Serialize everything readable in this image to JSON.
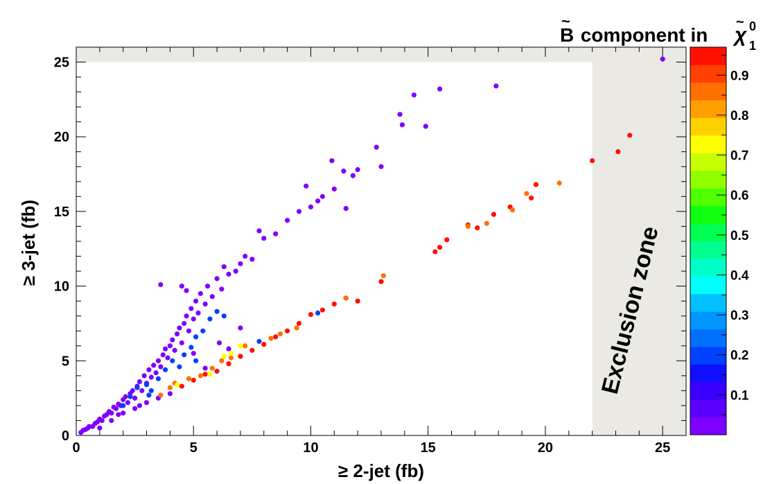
{
  "chart_data": {
    "type": "scatter",
    "xlabel": "≥ 2-jet (fb)",
    "ylabel": "≥ 3-jet (fb)",
    "xlim": [
      0,
      26
    ],
    "ylim": [
      0,
      26
    ],
    "x_ticks": [
      "0",
      "5",
      "10",
      "15",
      "20",
      "25"
    ],
    "y_ticks": [
      "0",
      "5",
      "10",
      "15",
      "20",
      "25"
    ],
    "colorbar": {
      "title_main": "B",
      "title_mid": " component in ",
      "title_chi": "χ",
      "title_sup": "0",
      "title_sub": "1",
      "range": [
        0,
        0.97
      ],
      "ticks": [
        "0.1",
        "0.2",
        "0.3",
        "0.4",
        "0.5",
        "0.6",
        "0.7",
        "0.8",
        "0.9"
      ],
      "palette": [
        "#7f00ff",
        "#5c00ff",
        "#3a00ff",
        "#1010ff",
        "#0040ff",
        "#0070ff",
        "#0095ff",
        "#00c0ff",
        "#00ffff",
        "#00ffc8",
        "#00ff90",
        "#00ff50",
        "#10ff10",
        "#50ff00",
        "#90ff00",
        "#c8ff00",
        "#ffff00",
        "#ffd000",
        "#ffa000",
        "#ff7000",
        "#ff4000",
        "#ff1000"
      ]
    },
    "annotation": "Exclusion zone",
    "exclusion_zone": {
      "x_from": 22,
      "y_from": 25
    },
    "series": [
      {
        "points": [
          [
            0.2,
            0.2
          ],
          [
            0.3,
            0.35
          ],
          [
            0.4,
            0.4
          ],
          [
            0.5,
            0.5
          ],
          [
            0.55,
            0.6
          ],
          [
            0.7,
            0.6
          ],
          [
            0.8,
            0.8
          ],
          [
            0.9,
            0.9
          ],
          [
            1.0,
            1.1
          ],
          [
            1.1,
            1.0
          ],
          [
            1.2,
            1.3
          ],
          [
            1.3,
            1.4
          ],
          [
            1.4,
            1.6
          ],
          [
            1.5,
            1.5
          ],
          [
            1.6,
            1.9
          ],
          [
            1.7,
            1.8
          ],
          [
            1.8,
            2.1
          ],
          [
            1.9,
            2.0
          ],
          [
            2.0,
            2.4
          ],
          [
            2.1,
            2.6
          ],
          [
            2.2,
            2.2
          ],
          [
            2.3,
            2.8
          ],
          [
            2.4,
            3.0
          ],
          [
            2.5,
            2.5
          ],
          [
            2.6,
            3.3
          ],
          [
            2.7,
            3.6
          ],
          [
            2.8,
            3.0
          ],
          [
            2.9,
            4.0
          ],
          [
            3.0,
            3.5
          ],
          [
            3.1,
            4.4
          ],
          [
            3.2,
            3.9
          ],
          [
            3.3,
            4.7
          ],
          [
            3.4,
            4.2
          ],
          [
            3.5,
            5.0
          ],
          [
            3.6,
            4.6
          ],
          [
            3.7,
            5.4
          ],
          [
            3.8,
            5.8
          ],
          [
            3.9,
            5.2
          ],
          [
            4.0,
            6.0
          ],
          [
            4.1,
            6.4
          ],
          [
            4.2,
            5.7
          ],
          [
            4.3,
            6.8
          ],
          [
            4.4,
            7.2
          ],
          [
            4.5,
            6.2
          ],
          [
            4.6,
            7.5
          ],
          [
            4.7,
            8.0
          ],
          [
            4.8,
            7.0
          ],
          [
            4.9,
            8.5
          ],
          [
            5.0,
            7.8
          ],
          [
            5.1,
            9.0
          ],
          [
            5.2,
            8.2
          ],
          [
            5.3,
            9.5
          ],
          [
            5.5,
            8.8
          ],
          [
            5.6,
            10.0
          ],
          [
            5.8,
            9.3
          ],
          [
            6.0,
            10.5
          ],
          [
            6.2,
            9.8
          ],
          [
            6.3,
            11.3
          ],
          [
            6.5,
            10.8
          ],
          [
            6.8,
            11.0
          ],
          [
            7.0,
            11.5
          ],
          [
            7.2,
            12.0
          ],
          [
            7.5,
            11.8
          ],
          [
            7.8,
            13.7
          ],
          [
            8.0,
            13.2
          ],
          [
            8.5,
            13.5
          ],
          [
            9.0,
            14.4
          ],
          [
            9.5,
            15.0
          ],
          [
            9.8,
            16.7
          ],
          [
            10.0,
            15.3
          ],
          [
            10.3,
            15.7
          ],
          [
            10.5,
            16.0
          ],
          [
            10.9,
            18.4
          ],
          [
            11.0,
            16.5
          ],
          [
            11.4,
            17.7
          ],
          [
            11.5,
            15.2
          ],
          [
            11.8,
            17.4
          ],
          [
            12.0,
            17.8
          ],
          [
            12.8,
            19.3
          ],
          [
            13.0,
            18.0
          ],
          [
            13.8,
            21.5
          ],
          [
            13.9,
            20.8
          ],
          [
            14.4,
            22.8
          ],
          [
            14.9,
            20.7
          ],
          [
            15.5,
            23.2
          ],
          [
            17.9,
            23.4
          ],
          [
            25.0,
            25.2
          ],
          [
            1.5,
            1.0
          ],
          [
            2.0,
            1.5
          ],
          [
            2.5,
            1.8
          ],
          [
            3.0,
            2.2
          ],
          [
            3.5,
            2.5
          ],
          [
            3.6,
            10.1
          ],
          [
            4.5,
            10.0
          ],
          [
            4.7,
            9.7
          ],
          [
            5.5,
            4.5
          ],
          [
            5.0,
            5.5
          ],
          [
            6.1,
            6.2
          ],
          [
            6.5,
            5.8
          ],
          [
            7.0,
            7.2
          ],
          [
            4.0,
            2.8
          ],
          [
            1.0,
            0.5
          ],
          [
            1.8,
            1.4
          ],
          [
            2.7,
            2.0
          ]
        ],
        "value": 0.02
      },
      {
        "points": [
          [
            2.3,
            2.6
          ],
          [
            2.6,
            3.2
          ],
          [
            3.0,
            3.4
          ],
          [
            3.2,
            3.0
          ],
          [
            3.5,
            3.8
          ],
          [
            3.8,
            4.4
          ],
          [
            4.1,
            5.0
          ],
          [
            4.4,
            4.6
          ],
          [
            4.6,
            5.4
          ],
          [
            4.9,
            5.9
          ],
          [
            5.1,
            6.6
          ],
          [
            5.4,
            7.0
          ],
          [
            5.7,
            7.8
          ],
          [
            6.0,
            8.3
          ],
          [
            6.3,
            8.0
          ],
          [
            5.1,
            5.0
          ],
          [
            7.8,
            6.3
          ],
          [
            10.3,
            8.2
          ],
          [
            2.0,
            2.0
          ],
          [
            3.1,
            2.7
          ]
        ],
        "value": 0.18
      },
      {
        "points": [
          [
            4.5,
            3.3
          ],
          [
            5.0,
            3.7
          ],
          [
            5.5,
            4.1
          ],
          [
            6.0,
            4.3
          ],
          [
            6.5,
            4.8
          ],
          [
            7.0,
            5.3
          ],
          [
            7.5,
            5.7
          ],
          [
            8.0,
            6.1
          ],
          [
            8.5,
            6.6
          ],
          [
            9.0,
            7.0
          ],
          [
            9.5,
            7.5
          ],
          [
            10.0,
            8.1
          ],
          [
            10.5,
            8.4
          ],
          [
            11.0,
            8.8
          ],
          [
            11.5,
            9.2
          ],
          [
            12.0,
            9.0
          ],
          [
            13.0,
            10.3
          ],
          [
            15.3,
            12.3
          ],
          [
            15.5,
            12.6
          ],
          [
            15.8,
            13.1
          ],
          [
            16.7,
            14.1
          ],
          [
            17.1,
            13.9
          ],
          [
            17.8,
            14.8
          ],
          [
            18.5,
            15.3
          ],
          [
            19.4,
            15.9
          ],
          [
            19.6,
            16.8
          ],
          [
            22.0,
            18.4
          ],
          [
            23.1,
            19.0
          ],
          [
            23.6,
            20.1
          ]
        ],
        "value": 0.93
      },
      {
        "points": [
          [
            3.6,
            2.7
          ],
          [
            4.0,
            3.2
          ],
          [
            4.2,
            3.5
          ],
          [
            4.8,
            3.8
          ],
          [
            5.3,
            4.0
          ],
          [
            5.8,
            4.5
          ],
          [
            6.2,
            5.0
          ],
          [
            6.6,
            5.2
          ],
          [
            7.2,
            6.0
          ],
          [
            8.3,
            6.5
          ],
          [
            8.7,
            6.8
          ],
          [
            9.4,
            7.2
          ],
          [
            11.5,
            9.2
          ],
          [
            13.1,
            10.7
          ],
          [
            16.7,
            14.0
          ],
          [
            17.5,
            14.2
          ],
          [
            18.6,
            15.1
          ],
          [
            19.2,
            16.2
          ],
          [
            20.6,
            16.9
          ]
        ],
        "value": 0.84
      },
      {
        "points": [
          [
            4.3,
            3.4
          ],
          [
            5.7,
            4.1
          ],
          [
            6.3,
            5.3
          ],
          [
            7.0,
            6.0
          ],
          [
            6.6,
            5.5
          ]
        ],
        "value": 0.74
      }
    ]
  }
}
